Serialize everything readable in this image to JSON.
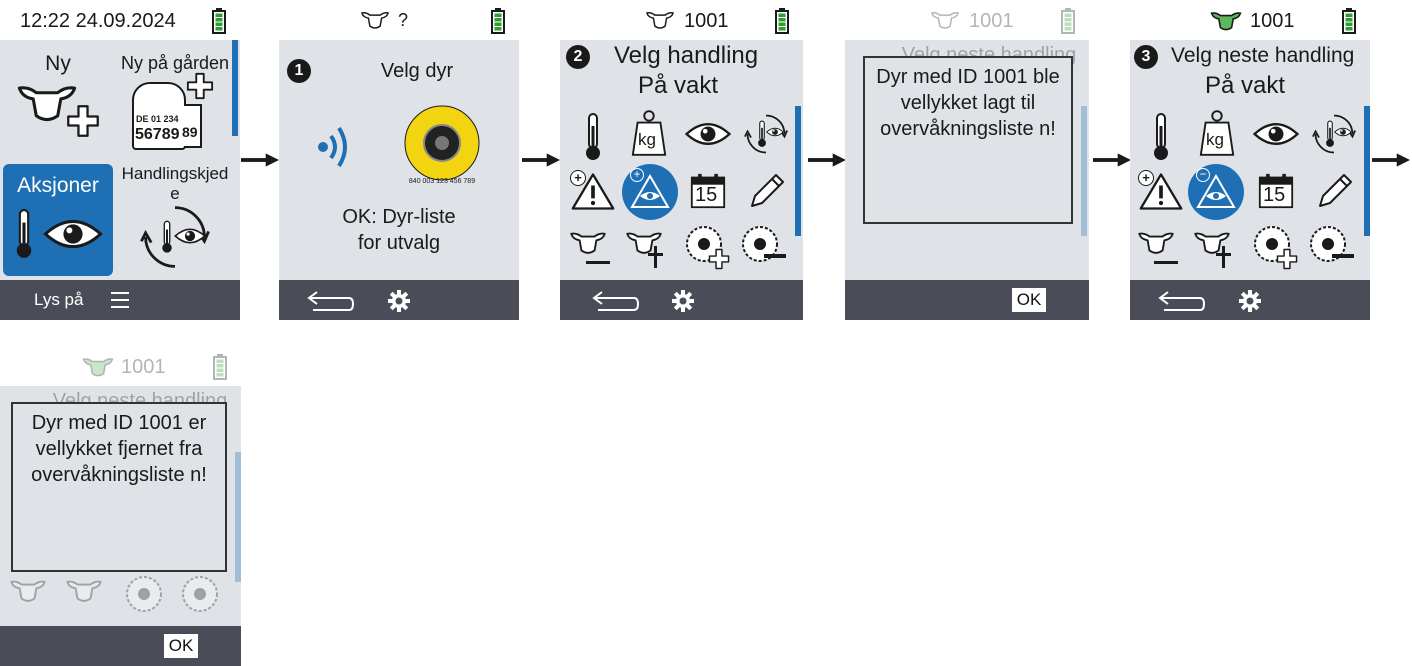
{
  "colors": {
    "accent": "#1f6fb5",
    "content_bg": "#dfe3e8",
    "bottom_bar": "#4a4d57",
    "battery": "#2e9e2e",
    "cow_green": "#5cb85c"
  },
  "s1": {
    "clock": "12:22 24.09.2024",
    "tile_new": "Ny",
    "tile_new_farm": "Ny på gården",
    "tag_line1": "DE 01 234",
    "tag_line2": "56789",
    "tag_side": "89",
    "tile_actions": "Aksjoner",
    "tile_chain": "Handlingskjede",
    "light": "Lys på"
  },
  "s2": {
    "animal_id": "?",
    "step": "1",
    "title": "Velg dyr",
    "tag_text": "840 003 123 456 789",
    "hint": "OK: Dyr-liste for utvalg"
  },
  "s3": {
    "animal_id": "1001",
    "step": "2",
    "title": "Velg handling",
    "subtitle": "På vakt",
    "kg": "kg",
    "day": "15"
  },
  "s4": {
    "animal_id": "1001",
    "header": "Velg neste handling",
    "dialog": "Dyr med ID 1001 ble vellykket lagt til overvåkningsliste n!",
    "ok": "OK"
  },
  "s5": {
    "animal_id": "1001",
    "step": "3",
    "title": "Velg neste handling",
    "subtitle": "På vakt",
    "kg": "kg",
    "day": "15"
  },
  "s6": {
    "animal_id": "1001",
    "header": "Velg neste handling",
    "dialog": "Dyr med ID 1001 er vellykket fjernet fra overvåkningsliste n!",
    "ok": "OK"
  }
}
